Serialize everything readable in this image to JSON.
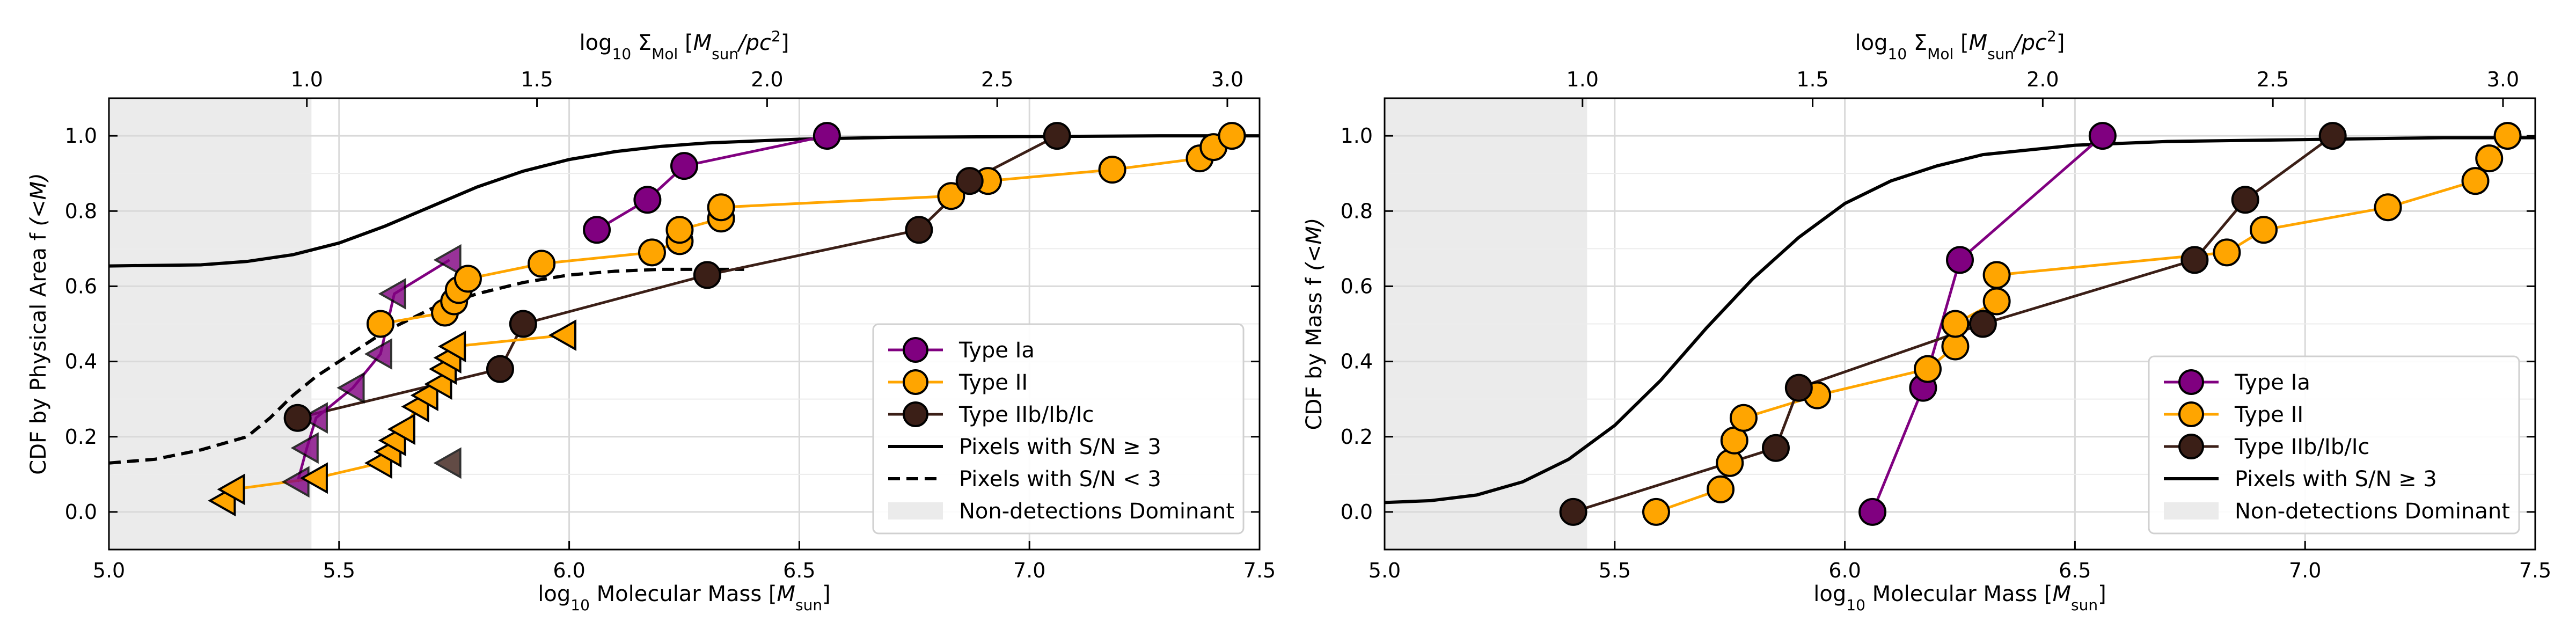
{
  "colors": {
    "type_ia": "#800080",
    "type_ii": "#FFA500",
    "type_iib": "#3b1f17",
    "pixels": "#000000",
    "nondetect": "#ebebeb"
  },
  "chart_data": [
    {
      "type": "line",
      "xlabel": "log$_{10}$ Molecular Mass [$M_{sun}$]",
      "ylabel": "CDF by Physical Area f $(<M)$",
      "top_xlabel": "log$_{10}$ $\\Sigma_{Mol}$ [$M_{sun}/pc^2$]",
      "xlim": [
        5.0,
        7.5
      ],
      "ylim": [
        -0.1,
        1.1
      ],
      "xticks": [
        "5.0",
        "5.5",
        "6.0",
        "6.5",
        "7.0",
        "7.5"
      ],
      "yticks": [
        "0.0",
        "0.2",
        "0.4",
        "0.6",
        "0.8",
        "1.0"
      ],
      "top_ticks": [
        "1.0",
        "1.5",
        "2.0",
        "2.5",
        "3.0"
      ],
      "grid": true,
      "nondetection_region": [
        5.0,
        5.44
      ],
      "legend_position": "lower right",
      "legend": [
        {
          "label": "Type Ia",
          "kind": "marker",
          "color": "#800080"
        },
        {
          "label": "Type II",
          "kind": "marker",
          "color": "#FFA500"
        },
        {
          "label": "Type IIb/Ib/Ic",
          "kind": "marker",
          "color": "#3b1f17"
        },
        {
          "label": "Pixels with S/N $\\geq$ 3",
          "kind": "solid"
        },
        {
          "label": "Pixels with S/N $<$ 3",
          "kind": "dashed"
        },
        {
          "label": "Non-detections Dominant",
          "kind": "patch"
        }
      ],
      "series": [
        {
          "name": "Type Ia",
          "marker": "circle",
          "x": [
            6.06,
            6.17,
            6.25,
            6.56
          ],
          "y": [
            0.75,
            0.83,
            0.92,
            1.0
          ]
        },
        {
          "name": "Type Ia",
          "marker": "triangle",
          "x": [
            5.41,
            5.43,
            5.45,
            5.53,
            5.59,
            5.62,
            5.74
          ],
          "y": [
            0.08,
            0.17,
            0.25,
            0.33,
            0.42,
            0.58,
            0.67
          ]
        },
        {
          "name": "Type II",
          "marker": "circle",
          "x": [
            5.59,
            5.73,
            5.75,
            5.76,
            5.78,
            5.94,
            6.18,
            6.24,
            6.24,
            6.33,
            6.33,
            6.83,
            6.91,
            7.18,
            7.37,
            7.4,
            7.44
          ],
          "y": [
            0.5,
            0.53,
            0.56,
            0.59,
            0.62,
            0.66,
            0.69,
            0.72,
            0.75,
            0.78,
            0.81,
            0.84,
            0.88,
            0.91,
            0.94,
            0.97,
            1.0
          ]
        },
        {
          "name": "Type II",
          "marker": "triangle",
          "x": [
            5.25,
            5.27,
            5.45,
            5.59,
            5.61,
            5.62,
            5.64,
            5.67,
            5.69,
            5.72,
            5.73,
            5.74,
            5.75,
            5.99
          ],
          "y": [
            0.03,
            0.06,
            0.09,
            0.13,
            0.16,
            0.19,
            0.22,
            0.28,
            0.31,
            0.34,
            0.38,
            0.41,
            0.44,
            0.47
          ]
        },
        {
          "name": "Type IIb/Ib/Ic",
          "marker": "circle",
          "x": [
            5.41,
            5.85,
            5.9,
            6.3,
            6.76,
            6.87,
            7.06
          ],
          "y": [
            0.25,
            0.38,
            0.5,
            0.63,
            0.75,
            0.88,
            1.0
          ]
        },
        {
          "name": "Type IIb/Ib/Ic",
          "marker": "triangle",
          "x": [
            5.74
          ],
          "y": [
            0.13
          ]
        },
        {
          "name": "Pixels with S/N $\\geq$ 3",
          "style": "solid",
          "x": [
            5.0,
            5.2,
            5.3,
            5.4,
            5.5,
            5.6,
            5.7,
            5.8,
            5.9,
            6.0,
            6.1,
            6.2,
            6.3,
            6.5,
            6.7,
            7.0,
            7.3,
            7.5
          ],
          "y": [
            0.654,
            0.657,
            0.666,
            0.684,
            0.715,
            0.76,
            0.812,
            0.864,
            0.906,
            0.937,
            0.958,
            0.972,
            0.981,
            0.991,
            0.996,
            0.998,
            1.0,
            1.0
          ]
        },
        {
          "name": "Pixels with S/N $<$ 3",
          "style": "dashed",
          "x": [
            5.0,
            5.1,
            5.2,
            5.3,
            5.35,
            5.4,
            5.45,
            5.5,
            5.55,
            5.6,
            5.7,
            5.8,
            5.9,
            6.0,
            6.1,
            6.2,
            6.3,
            6.38
          ],
          "y": [
            0.13,
            0.14,
            0.165,
            0.2,
            0.25,
            0.31,
            0.36,
            0.4,
            0.44,
            0.48,
            0.54,
            0.58,
            0.61,
            0.63,
            0.64,
            0.645,
            0.645,
            0.645
          ]
        }
      ]
    },
    {
      "type": "line",
      "xlabel": "log$_{10}$ Molecular Mass [$M_{sun}$]",
      "ylabel": "CDF by Mass f $(<M)$",
      "top_xlabel": "log$_{10}$ $\\Sigma_{Mol}$ [$M_{sun}/pc^2$]",
      "xlim": [
        5.0,
        7.5
      ],
      "ylim": [
        -0.1,
        1.1
      ],
      "xticks": [
        "5.0",
        "5.5",
        "6.0",
        "6.5",
        "7.0",
        "7.5"
      ],
      "yticks": [
        "0.0",
        "0.2",
        "0.4",
        "0.6",
        "0.8",
        "1.0"
      ],
      "top_ticks": [
        "1.0",
        "1.5",
        "2.0",
        "2.5",
        "3.0"
      ],
      "grid": true,
      "nondetection_region": [
        5.0,
        5.44
      ],
      "legend_position": "lower right",
      "legend": [
        {
          "label": "Type Ia",
          "kind": "marker",
          "color": "#800080"
        },
        {
          "label": "Type II",
          "kind": "marker",
          "color": "#FFA500"
        },
        {
          "label": "Type IIb/Ib/Ic",
          "kind": "marker",
          "color": "#3b1f17"
        },
        {
          "label": "Pixels with S/N $\\geq$ 3",
          "kind": "solid"
        },
        {
          "label": "Non-detections Dominant",
          "kind": "patch"
        }
      ],
      "series": [
        {
          "name": "Type Ia",
          "marker": "circle",
          "x": [
            6.06,
            6.17,
            6.25,
            6.56
          ],
          "y": [
            0.0,
            0.33,
            0.67,
            1.0
          ]
        },
        {
          "name": "Type II",
          "marker": "circle",
          "x": [
            5.59,
            5.73,
            5.75,
            5.76,
            5.78,
            5.94,
            6.18,
            6.24,
            6.24,
            6.33,
            6.33,
            6.83,
            6.91,
            7.18,
            7.37,
            7.4,
            7.44
          ],
          "y": [
            0.0,
            0.06,
            0.13,
            0.19,
            0.25,
            0.31,
            0.38,
            0.44,
            0.5,
            0.56,
            0.63,
            0.69,
            0.75,
            0.81,
            0.88,
            0.94,
            1.0
          ]
        },
        {
          "name": "Type IIb/Ib/Ic",
          "marker": "circle",
          "x": [
            5.41,
            5.85,
            5.9,
            6.3,
            6.76,
            6.87,
            7.06
          ],
          "y": [
            0.0,
            0.17,
            0.33,
            0.5,
            0.67,
            0.83,
            1.0
          ]
        },
        {
          "name": "Pixels with S/N $\\geq$ 3",
          "style": "solid",
          "x": [
            5.0,
            5.1,
            5.2,
            5.3,
            5.4,
            5.5,
            5.6,
            5.7,
            5.8,
            5.9,
            6.0,
            6.1,
            6.2,
            6.3,
            6.5,
            6.7,
            7.0,
            7.3,
            7.5
          ],
          "y": [
            0.025,
            0.03,
            0.045,
            0.08,
            0.14,
            0.23,
            0.35,
            0.49,
            0.62,
            0.73,
            0.82,
            0.88,
            0.92,
            0.95,
            0.975,
            0.985,
            0.99,
            0.995,
            0.995
          ]
        }
      ]
    }
  ]
}
